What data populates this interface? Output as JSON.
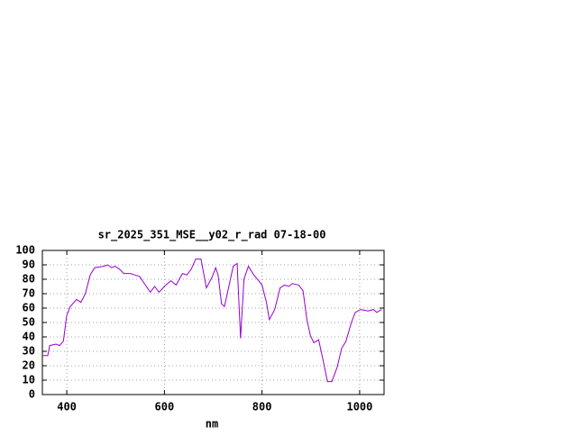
{
  "chart_data": {
    "type": "line",
    "title": "sr_2025_351_MSE__y02_r_rad 07-18-00",
    "x_label": "nm",
    "x": [
      350,
      361,
      365,
      378,
      385,
      393,
      400,
      407,
      420,
      429,
      438,
      448,
      457,
      475,
      484,
      492,
      499,
      508,
      517,
      530,
      539,
      549,
      561,
      571,
      580,
      589,
      600,
      613,
      624,
      637,
      646,
      655,
      664,
      675,
      686,
      697,
      705,
      710,
      717,
      723,
      732,
      741,
      749,
      756,
      763,
      772,
      783,
      793,
      800,
      809,
      815,
      826,
      837,
      846,
      855,
      862,
      875,
      884,
      892,
      899,
      906,
      916,
      925,
      934,
      943,
      954,
      963,
      972,
      983,
      991,
      1002,
      1017,
      1028,
      1035,
      1045
    ],
    "series": [
      {
        "name": "r_rad",
        "color": "#9400d3",
        "values": [
          27,
          27,
          34,
          35,
          34,
          37,
          55,
          61,
          66,
          64,
          70,
          83,
          88,
          89,
          90,
          88,
          89,
          87,
          84,
          84,
          83,
          82,
          76,
          71,
          75,
          71,
          75,
          79,
          76,
          84,
          83,
          87,
          94,
          94,
          74,
          81,
          88,
          83,
          63,
          61,
          75,
          89,
          91,
          39,
          80,
          89,
          83,
          79,
          76,
          64,
          52,
          59,
          74,
          76,
          75,
          77,
          76,
          72,
          52,
          41,
          36,
          38,
          24,
          9,
          9,
          19,
          32,
          37,
          50,
          57,
          59,
          58,
          59,
          57,
          59
        ]
      }
    ],
    "xlim": [
      350,
      1050
    ],
    "ylim": [
      0,
      100
    ],
    "xticks": [
      400,
      600,
      800,
      1000
    ],
    "yticks": [
      0,
      10,
      20,
      30,
      40,
      50,
      60,
      70,
      80,
      90,
      100
    ],
    "grid": true
  }
}
